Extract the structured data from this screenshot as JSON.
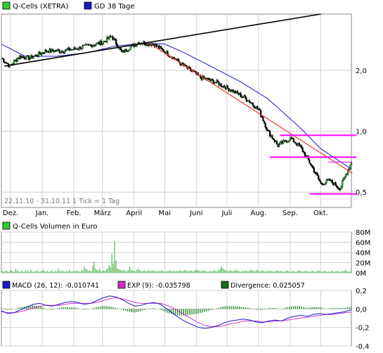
{
  "chart_data": [
    {
      "type": "line",
      "title": "",
      "legend": [
        {
          "name": "Q-Cells (XETRA)",
          "color": "#33cc33"
        },
        {
          "name": "GD 38 Tage",
          "color": "#1a1acc"
        }
      ],
      "info_label": "22.11.10 - 31.10.11   1 Tick = 1 Tag",
      "x_ticks": [
        "Dez.",
        "Jan.",
        "Feb.",
        "März",
        "April",
        "Mai",
        "Juni",
        "Juli",
        "Aug.",
        "Sep.",
        "Okt."
      ],
      "y_scale": "log",
      "y_ticks": [
        "2,0",
        "1,0",
        "0,5"
      ],
      "ylim": [
        0.42,
        3.8
      ],
      "series": [
        {
          "name": "Q-Cells (XETRA)",
          "color": "#33cc33",
          "points": [
            [
              "2010-11-22",
              2.3
            ],
            [
              "2010-11-30",
              2.1
            ],
            [
              "2010-12-10",
              2.35
            ],
            [
              "2010-12-20",
              2.3
            ],
            [
              "2011-01-05",
              2.5
            ],
            [
              "2011-01-20",
              2.5
            ],
            [
              "2011-02-01",
              2.55
            ],
            [
              "2011-02-15",
              2.65
            ],
            [
              "2011-03-01",
              2.75
            ],
            [
              "2011-03-10",
              2.95
            ],
            [
              "2011-03-20",
              2.45
            ],
            [
              "2011-04-05",
              2.75
            ],
            [
              "2011-04-20",
              2.7
            ],
            [
              "2011-05-05",
              2.4
            ],
            [
              "2011-05-20",
              2.1
            ],
            [
              "2011-06-05",
              1.85
            ],
            [
              "2011-06-20",
              1.75
            ],
            [
              "2011-07-05",
              1.6
            ],
            [
              "2011-07-20",
              1.45
            ],
            [
              "2011-08-01",
              1.28
            ],
            [
              "2011-08-10",
              1.0
            ],
            [
              "2011-08-20",
              0.85
            ],
            [
              "2011-09-01",
              0.92
            ],
            [
              "2011-09-10",
              0.85
            ],
            [
              "2011-09-20",
              0.7
            ],
            [
              "2011-10-01",
              0.55
            ],
            [
              "2011-10-10",
              0.57
            ],
            [
              "2011-10-20",
              0.52
            ],
            [
              "2011-10-31",
              0.7
            ]
          ]
        },
        {
          "name": "GD 38 Tage",
          "color": "#1a1acc",
          "points": [
            [
              "2010-11-22",
              2.7
            ],
            [
              "2010-12-15",
              2.35
            ],
            [
              "2011-01-15",
              2.35
            ],
            [
              "2011-02-15",
              2.45
            ],
            [
              "2011-03-15",
              2.65
            ],
            [
              "2011-04-15",
              2.72
            ],
            [
              "2011-05-01",
              2.7
            ],
            [
              "2011-05-20",
              2.45
            ],
            [
              "2011-06-15",
              2.1
            ],
            [
              "2011-07-15",
              1.75
            ],
            [
              "2011-08-10",
              1.45
            ],
            [
              "2011-09-10",
              1.05
            ],
            [
              "2011-10-01",
              0.82
            ],
            [
              "2011-10-31",
              0.65
            ]
          ]
        }
      ]
    },
    {
      "type": "bar",
      "legend": [
        {
          "name": "Q-Cells Volumen in Euro",
          "color": "#33cc33"
        }
      ],
      "y_ticks": [
        "80M",
        "60M",
        "40M",
        "20M",
        "0M"
      ],
      "ylim": [
        0,
        80
      ],
      "values": [
        4,
        2,
        3,
        5,
        3,
        2,
        6,
        4,
        3,
        2,
        8,
        5,
        3,
        2,
        4,
        3,
        2,
        5,
        3,
        4,
        2,
        6,
        3,
        2,
        4,
        3,
        5,
        2,
        3,
        4,
        6,
        3,
        2,
        4,
        2,
        3,
        5,
        3,
        2,
        4,
        3,
        8,
        4,
        3,
        5,
        3,
        2,
        4,
        3,
        6,
        3,
        2,
        4,
        3,
        5,
        4,
        3,
        2,
        6,
        4,
        12,
        8,
        6,
        4,
        5,
        3,
        14,
        22,
        9,
        6,
        5,
        8,
        4,
        3,
        5,
        4,
        6,
        9,
        15,
        11,
        38,
        18,
        62,
        24,
        9,
        7,
        6,
        5,
        4,
        6,
        3,
        4,
        5,
        12,
        6,
        5,
        4,
        3,
        5,
        8,
        6,
        4,
        3,
        4,
        5,
        3,
        4,
        6,
        3,
        4,
        5,
        4,
        3,
        3,
        4,
        3,
        5,
        4,
        3,
        2,
        4,
        3,
        5,
        4,
        3,
        4,
        3,
        4,
        3,
        5,
        4,
        3,
        4,
        5,
        6,
        4,
        3,
        5,
        4,
        3,
        4,
        5,
        6,
        5,
        4,
        3,
        4,
        5,
        4,
        3,
        2,
        3,
        4,
        3,
        4,
        5,
        3,
        4,
        6,
        8,
        12,
        9,
        6,
        5,
        4,
        3,
        5,
        4,
        3,
        4,
        6,
        5,
        4,
        3,
        2,
        4,
        3,
        5,
        4,
        3,
        4,
        6,
        5,
        4,
        3,
        5,
        6,
        4,
        3,
        4,
        5,
        3,
        2,
        4,
        3,
        5,
        4,
        3,
        2,
        3,
        4,
        5,
        3,
        4,
        3,
        2,
        3,
        4,
        5,
        3,
        2,
        3,
        4,
        3,
        2,
        3,
        4,
        5,
        3,
        2,
        3,
        4,
        3,
        3,
        2,
        3,
        4,
        3,
        2,
        3,
        4,
        5,
        3,
        2,
        3,
        4,
        3,
        2,
        3,
        2,
        4,
        3,
        2,
        3,
        4,
        3,
        2,
        3,
        4,
        3,
        6,
        4,
        3,
        2,
        3
      ]
    },
    {
      "type": "line",
      "legend": [
        {
          "name": "MACD (26, 12): -0,010741",
          "color": "#1a1acc"
        },
        {
          "name": "EXP (9): -0,035798",
          "color": "#cc33cc"
        },
        {
          "name": "Divergence: 0,025057",
          "color": "#1a6b1a"
        }
      ],
      "y_ticks": [
        "0,2",
        "0,0",
        "-0,2",
        "-0,4"
      ],
      "ylim": [
        -0.4,
        0.2
      ],
      "macd": [
        -0.02,
        -0.05,
        -0.04,
        -0.01,
        0.02,
        0.05,
        0.06,
        0.04,
        0.03,
        0.05,
        0.07,
        0.08,
        0.07,
        0.05,
        0.06,
        0.09,
        0.12,
        0.14,
        0.13,
        0.1,
        0.06,
        0.03,
        0.04,
        0.06,
        0.07,
        0.05,
        0.0,
        -0.05,
        -0.1,
        -0.14,
        -0.17,
        -0.2,
        -0.21,
        -0.2,
        -0.18,
        -0.15,
        -0.13,
        -0.12,
        -0.11,
        -0.12,
        -0.14,
        -0.15,
        -0.13,
        -0.12,
        -0.13,
        -0.1,
        -0.08,
        -0.07,
        -0.08,
        -0.06,
        -0.05,
        -0.06,
        -0.05,
        -0.04,
        -0.03,
        -0.01
      ],
      "exp": [
        -0.03,
        -0.04,
        -0.04,
        -0.03,
        -0.01,
        0.01,
        0.03,
        0.04,
        0.04,
        0.04,
        0.05,
        0.06,
        0.06,
        0.06,
        0.06,
        0.07,
        0.09,
        0.11,
        0.12,
        0.11,
        0.09,
        0.07,
        0.06,
        0.06,
        0.06,
        0.06,
        0.04,
        0.01,
        -0.03,
        -0.07,
        -0.11,
        -0.15,
        -0.18,
        -0.19,
        -0.19,
        -0.18,
        -0.16,
        -0.15,
        -0.13,
        -0.13,
        -0.13,
        -0.14,
        -0.14,
        -0.13,
        -0.13,
        -0.12,
        -0.11,
        -0.1,
        -0.09,
        -0.08,
        -0.07,
        -0.06,
        -0.06,
        -0.05,
        -0.04,
        -0.035
      ]
    }
  ]
}
